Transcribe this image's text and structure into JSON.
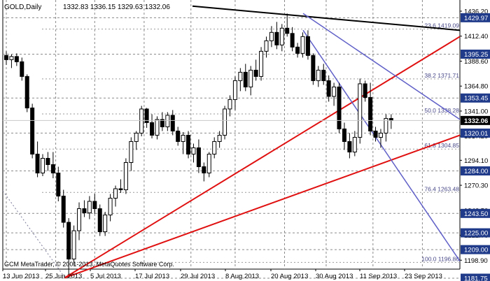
{
  "header": {
    "symbol_label": "GOLD,Daily",
    "ohlc_text": "1332.83 1336.15 1329.63 1332.06"
  },
  "copyright": "GCM MetaTrader, © 2001-2013, MetaQuotes Software Corp.",
  "colors": {
    "background": "#ffffff",
    "grid": "#8a8a8a",
    "candle": "#000000",
    "support_line": "#e01010",
    "resistance_line": "#000000",
    "channel_line": "#6060c8",
    "fib_label": "#4a4a8a",
    "price_box": "#1f3b8a",
    "current_price_box": "#000000"
  },
  "chart_data": {
    "type": "candlestick",
    "title": "GOLD,Daily",
    "ylim": [
      1181.75,
      1436.2
    ],
    "price_axis_labels": [
      "1436.20",
      "1412.40",
      "1388.60",
      "1364.80",
      "1341.00",
      "1317.20",
      "1294.10",
      "1270.30",
      "1246.50",
      "1222.70",
      "1198.90"
    ],
    "marked_levels": [
      "1429.97",
      "1395.25",
      "1353.45",
      "1320.01",
      "1284.00",
      "1243.50",
      "1225.00",
      "1209.00",
      "1181.75"
    ],
    "current_price": "1332.06",
    "date_labels": [
      "13 Jun 2013",
      "25 Jun 2013",
      "5 Jul 2013",
      "17 Jul 2013",
      "29 Jul 2013",
      "8 Aug 2013",
      "20 Aug 2013",
      "30 Aug 2013",
      "11 Sep 2013",
      "23 Sep 2013"
    ],
    "fib_levels": [
      {
        "label": "23.6 1419.09",
        "price": 1419.09
      },
      {
        "label": "38.2 1371.71",
        "price": 1371.71
      },
      {
        "label": "50.0 1338.28",
        "price": 1338.28
      },
      {
        "label": "61.8 1304.85",
        "price": 1304.85
      },
      {
        "label": "76.4 1263.48",
        "price": 1263.48
      },
      {
        "label": "100.0 1196.86",
        "price": 1196.86
      }
    ],
    "candles": [
      [
        1394,
        1398,
        1385,
        1390
      ],
      [
        1390,
        1395,
        1382,
        1393
      ],
      [
        1393,
        1396,
        1384,
        1388
      ],
      [
        1388,
        1392,
        1370,
        1374
      ],
      [
        1374,
        1376,
        1340,
        1344
      ],
      [
        1344,
        1348,
        1296,
        1300
      ],
      [
        1300,
        1312,
        1278,
        1282
      ],
      [
        1282,
        1300,
        1279,
        1296
      ],
      [
        1296,
        1302,
        1284,
        1290
      ],
      [
        1290,
        1302,
        1277,
        1282
      ],
      [
        1282,
        1288,
        1255,
        1260
      ],
      [
        1260,
        1266,
        1230,
        1235
      ],
      [
        1235,
        1239,
        1186,
        1200
      ],
      [
        1200,
        1232,
        1194,
        1227
      ],
      [
        1227,
        1254,
        1218,
        1248
      ],
      [
        1248,
        1256,
        1240,
        1244
      ],
      [
        1244,
        1260,
        1238,
        1255
      ],
      [
        1255,
        1262,
        1243,
        1248
      ],
      [
        1248,
        1252,
        1222,
        1226
      ],
      [
        1226,
        1245,
        1222,
        1242
      ],
      [
        1242,
        1262,
        1236,
        1258
      ],
      [
        1258,
        1270,
        1250,
        1267
      ],
      [
        1267,
        1276,
        1263,
        1266
      ],
      [
        1266,
        1296,
        1262,
        1292
      ],
      [
        1292,
        1316,
        1284,
        1312
      ],
      [
        1312,
        1322,
        1304,
        1320
      ],
      [
        1320,
        1346,
        1317,
        1343
      ],
      [
        1343,
        1344,
        1325,
        1330
      ],
      [
        1330,
        1338,
        1315,
        1318
      ],
      [
        1318,
        1336,
        1314,
        1333
      ],
      [
        1333,
        1340,
        1322,
        1326
      ],
      [
        1326,
        1340,
        1322,
        1337
      ],
      [
        1337,
        1342,
        1318,
        1322
      ],
      [
        1322,
        1326,
        1308,
        1312
      ],
      [
        1312,
        1321,
        1300,
        1318
      ],
      [
        1318,
        1322,
        1296,
        1300
      ],
      [
        1300,
        1310,
        1292,
        1306
      ],
      [
        1306,
        1314,
        1282,
        1288
      ],
      [
        1288,
        1292,
        1274,
        1282
      ],
      [
        1282,
        1302,
        1278,
        1300
      ],
      [
        1300,
        1316,
        1296,
        1312
      ],
      [
        1312,
        1322,
        1306,
        1318
      ],
      [
        1318,
        1346,
        1314,
        1343
      ],
      [
        1343,
        1356,
        1336,
        1352
      ],
      [
        1352,
        1374,
        1342,
        1370
      ],
      [
        1370,
        1382,
        1360,
        1378
      ],
      [
        1378,
        1386,
        1360,
        1364
      ],
      [
        1364,
        1384,
        1356,
        1380
      ],
      [
        1380,
        1390,
        1370,
        1374
      ],
      [
        1374,
        1402,
        1370,
        1398
      ],
      [
        1398,
        1412,
        1392,
        1408
      ],
      [
        1408,
        1422,
        1402,
        1416
      ],
      [
        1416,
        1426,
        1400,
        1404
      ],
      [
        1404,
        1424,
        1398,
        1420
      ],
      [
        1420,
        1434,
        1412,
        1415
      ],
      [
        1415,
        1421,
        1398,
        1402
      ],
      [
        1402,
        1406,
        1392,
        1396
      ],
      [
        1396,
        1416,
        1392,
        1412
      ],
      [
        1412,
        1418,
        1390,
        1394
      ],
      [
        1394,
        1396,
        1366,
        1370
      ],
      [
        1370,
        1384,
        1364,
        1380
      ],
      [
        1380,
        1386,
        1366,
        1370
      ],
      [
        1370,
        1375,
        1350,
        1355
      ],
      [
        1355,
        1368,
        1346,
        1364
      ],
      [
        1364,
        1368,
        1320,
        1324
      ],
      [
        1324,
        1330,
        1304,
        1312
      ],
      [
        1312,
        1320,
        1296,
        1302
      ],
      [
        1302,
        1322,
        1298,
        1316
      ],
      [
        1316,
        1372,
        1310,
        1367
      ],
      [
        1367,
        1370,
        1350,
        1354
      ],
      [
        1354,
        1368,
        1318,
        1322
      ],
      [
        1322,
        1326,
        1312,
        1316
      ],
      [
        1316,
        1324,
        1306,
        1320
      ],
      [
        1320,
        1338,
        1312,
        1334
      ],
      [
        1334,
        1338,
        1324,
        1332
      ]
    ]
  }
}
